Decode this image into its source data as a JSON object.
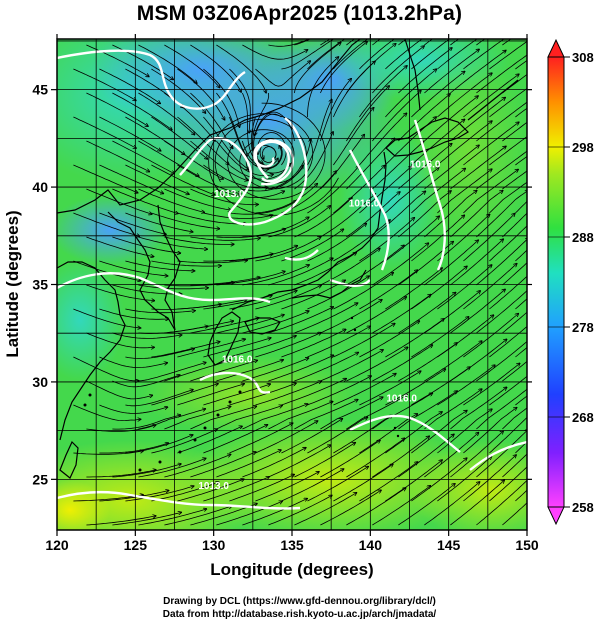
{
  "title": "MSM 03Z06Apr2025 (1013.2hPa)",
  "chart_data": {
    "type": "map",
    "xlabel": "Longitude (degrees)",
    "ylabel": "Latitude  (degrees)",
    "xlim": [
      120,
      150
    ],
    "ylim": [
      22.4,
      47.6
    ],
    "x_ticks": [
      120,
      125,
      130,
      135,
      140,
      145,
      150
    ],
    "y_ticks": [
      25,
      30,
      35,
      40,
      45
    ],
    "grid": true,
    "colorbar": {
      "ticks": [
        258,
        268,
        278,
        288,
        298,
        308
      ],
      "range": [
        258,
        308
      ],
      "position": "right"
    },
    "contour_labels": [
      {
        "text": "1013.0",
        "lon": 131.0,
        "lat": 39.5
      },
      {
        "text": "1016.0",
        "lon": 131.5,
        "lat": 31.0
      },
      {
        "text": "1016.0",
        "lon": 139.6,
        "lat": 39.0
      },
      {
        "text": "1016.0",
        "lon": 143.5,
        "lat": 41.0
      },
      {
        "text": "1016.0",
        "lon": 142.0,
        "lat": 29.0
      },
      {
        "text": "1013.0",
        "lon": 130.0,
        "lat": 24.5
      }
    ],
    "low_center": {
      "lon": 133.5,
      "lat": 41.5
    }
  },
  "footer": {
    "line1": "Drawing by DCL (https://www.gfd-dennou.org/library/dcl/)",
    "line2": "Data from http://database.rish.kyoto-u.ac.jp/arch/jmadata/"
  },
  "colors": {
    "cold": "#4aa0ff",
    "cool": "#37d8b0",
    "mid": "#3fd83f",
    "warm": "#b6e81c",
    "hot": "#f0f000"
  }
}
